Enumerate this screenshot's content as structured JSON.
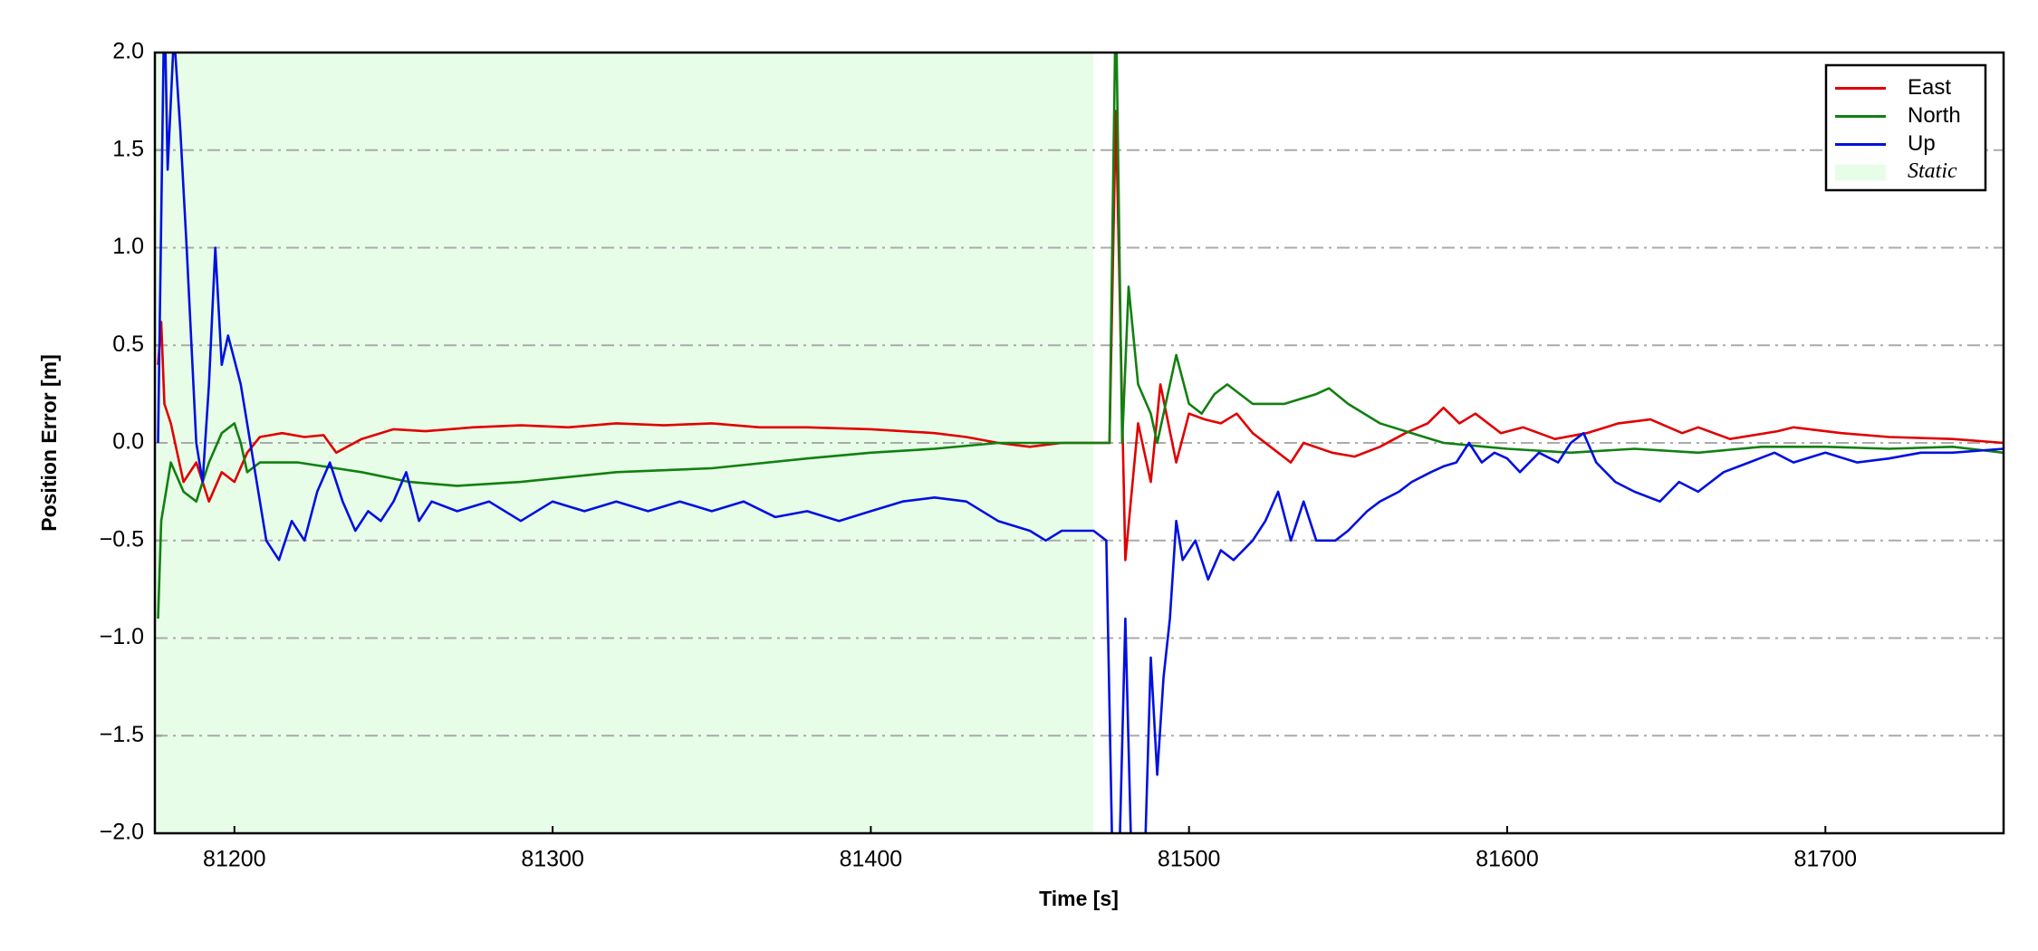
{
  "chart_data": {
    "type": "line",
    "xlabel": "Time [s]",
    "ylabel": "Position Error [m]",
    "xlim": [
      81175,
      81756
    ],
    "ylim": [
      -2.0,
      2.0
    ],
    "xticks": [
      81200,
      81300,
      81400,
      81500,
      81600,
      81700
    ],
    "yticks": [
      {
        "value": -2.0,
        "label": "−2.0"
      },
      {
        "value": -1.5,
        "label": "−1.5"
      },
      {
        "value": -1.0,
        "label": "−1.0"
      },
      {
        "value": -0.5,
        "label": "−0.5"
      },
      {
        "value": 0.0,
        "label": "0.0"
      },
      {
        "value": 0.5,
        "label": "0.5"
      },
      {
        "value": 1.0,
        "label": "1.0"
      },
      {
        "value": 1.5,
        "label": "1.5"
      },
      {
        "value": 2.0,
        "label": "2.0"
      }
    ],
    "grid": true,
    "legend": "upper right",
    "shaded_span": {
      "name": "Static",
      "x": [
        81175,
        81470
      ],
      "color": "#e8fde8"
    },
    "series": [
      {
        "name": "East",
        "color": "#e00000",
        "x": [
          81176,
          81177,
          81178,
          81180,
          81184,
          81188,
          81192,
          81196,
          81200,
          81204,
          81208,
          81215,
          81222,
          81228,
          81232,
          81240,
          81250,
          81260,
          81275,
          81290,
          81305,
          81320,
          81335,
          81350,
          81365,
          81380,
          81400,
          81420,
          81430,
          81440,
          81450,
          81460,
          81470,
          81475,
          81477,
          81480,
          81484,
          81488,
          81491,
          81496,
          81500,
          81505,
          81510,
          81515,
          81520,
          81528,
          81532,
          81536,
          81545,
          81552,
          81560,
          81568,
          81575,
          81580,
          81585,
          81590,
          81598,
          81605,
          81615,
          81625,
          81635,
          81645,
          81655,
          81660,
          81670,
          81685,
          81690,
          81705,
          81720,
          81740,
          81756
        ],
        "values": [
          0.4,
          0.62,
          0.2,
          0.1,
          -0.2,
          -0.1,
          -0.3,
          -0.15,
          -0.2,
          -0.05,
          0.03,
          0.05,
          0.03,
          0.04,
          -0.05,
          0.02,
          0.07,
          0.06,
          0.08,
          0.09,
          0.08,
          0.1,
          0.09,
          0.1,
          0.08,
          0.08,
          0.07,
          0.05,
          0.03,
          0.0,
          -0.02,
          0.0,
          0.0,
          0.0,
          1.7,
          -0.6,
          0.1,
          -0.2,
          0.3,
          -0.1,
          0.15,
          0.12,
          0.1,
          0.15,
          0.05,
          -0.05,
          -0.1,
          0.0,
          -0.05,
          -0.07,
          -0.02,
          0.05,
          0.1,
          0.18,
          0.1,
          0.15,
          0.05,
          0.08,
          0.02,
          0.05,
          0.1,
          0.12,
          0.05,
          0.08,
          0.02,
          0.06,
          0.08,
          0.05,
          0.03,
          0.02,
          0.0
        ]
      },
      {
        "name": "North",
        "color": "#118011",
        "x": [
          81176,
          81177,
          81180,
          81184,
          81188,
          81192,
          81196,
          81200,
          81202,
          81204,
          81208,
          81220,
          81240,
          81255,
          81270,
          81290,
          81320,
          81350,
          81380,
          81400,
          81420,
          81440,
          81470,
          81475,
          81477,
          81479,
          81481,
          81484,
          81488,
          81490,
          81494,
          81496,
          81500,
          81504,
          81508,
          81512,
          81520,
          81530,
          81540,
          81544,
          81550,
          81560,
          81570,
          81580,
          81600,
          81620,
          81640,
          81660,
          81680,
          81700,
          81720,
          81740,
          81756
        ],
        "values": [
          -0.9,
          -0.4,
          -0.1,
          -0.25,
          -0.3,
          -0.1,
          0.05,
          0.1,
          0.0,
          -0.15,
          -0.1,
          -0.1,
          -0.15,
          -0.2,
          -0.22,
          -0.2,
          -0.15,
          -0.13,
          -0.08,
          -0.05,
          -0.03,
          0.0,
          0.0,
          0.0,
          2.3,
          0.0,
          0.8,
          0.3,
          0.15,
          0.0,
          0.3,
          0.45,
          0.2,
          0.15,
          0.25,
          0.3,
          0.2,
          0.2,
          0.25,
          0.28,
          0.2,
          0.1,
          0.05,
          0.0,
          -0.03,
          -0.05,
          -0.03,
          -0.05,
          -0.02,
          -0.02,
          -0.03,
          -0.02,
          -0.05
        ]
      },
      {
        "name": "Up",
        "color": "#0010e0",
        "x": [
          81176,
          81178,
          81179,
          81181,
          81183,
          81185,
          81188,
          81190,
          81192,
          81194,
          81196,
          81198,
          81202,
          81206,
          81210,
          81214,
          81218,
          81222,
          81226,
          81230,
          81234,
          81238,
          81242,
          81246,
          81250,
          81254,
          81258,
          81262,
          81270,
          81280,
          81290,
          81300,
          81310,
          81320,
          81330,
          81340,
          81350,
          81360,
          81370,
          81380,
          81390,
          81400,
          81410,
          81420,
          81430,
          81440,
          81450,
          81455,
          81460,
          81470,
          81474,
          81476,
          81478,
          81480,
          81482,
          81484,
          81486,
          81488,
          81490,
          81492,
          81494,
          81496,
          81498,
          81502,
          81506,
          81510,
          81514,
          81520,
          81524,
          81528,
          81532,
          81536,
          81540,
          81546,
          81550,
          81556,
          81560,
          81566,
          81570,
          81576,
          81580,
          81584,
          81588,
          81592,
          81596,
          81600,
          81604,
          81610,
          81616,
          81620,
          81624,
          81628,
          81634,
          81640,
          81648,
          81654,
          81660,
          81668,
          81676,
          81684,
          81690,
          81700,
          81710,
          81720,
          81730,
          81740,
          81756
        ],
        "values": [
          0.0,
          2.3,
          1.4,
          2.1,
          1.6,
          1.0,
          0.0,
          -0.2,
          0.3,
          1.0,
          0.4,
          0.55,
          0.3,
          -0.1,
          -0.5,
          -0.6,
          -0.4,
          -0.5,
          -0.25,
          -0.1,
          -0.3,
          -0.45,
          -0.35,
          -0.4,
          -0.3,
          -0.15,
          -0.4,
          -0.3,
          -0.35,
          -0.3,
          -0.4,
          -0.3,
          -0.35,
          -0.3,
          -0.35,
          -0.3,
          -0.35,
          -0.3,
          -0.38,
          -0.35,
          -0.4,
          -0.35,
          -0.3,
          -0.28,
          -0.3,
          -0.4,
          -0.45,
          -0.5,
          -0.45,
          -0.45,
          -0.5,
          -2.2,
          -2.2,
          -0.9,
          -2.2,
          -2.2,
          -2.2,
          -1.1,
          -1.7,
          -1.2,
          -0.9,
          -0.4,
          -0.6,
          -0.5,
          -0.7,
          -0.55,
          -0.6,
          -0.5,
          -0.4,
          -0.25,
          -0.5,
          -0.3,
          -0.5,
          -0.5,
          -0.45,
          -0.35,
          -0.3,
          -0.25,
          -0.2,
          -0.15,
          -0.12,
          -0.1,
          0.0,
          -0.1,
          -0.05,
          -0.08,
          -0.15,
          -0.05,
          -0.1,
          0.0,
          0.05,
          -0.1,
          -0.2,
          -0.25,
          -0.3,
          -0.2,
          -0.25,
          -0.15,
          -0.1,
          -0.05,
          -0.1,
          -0.05,
          -0.1,
          -0.08,
          -0.05,
          -0.05,
          -0.03
        ]
      }
    ]
  }
}
